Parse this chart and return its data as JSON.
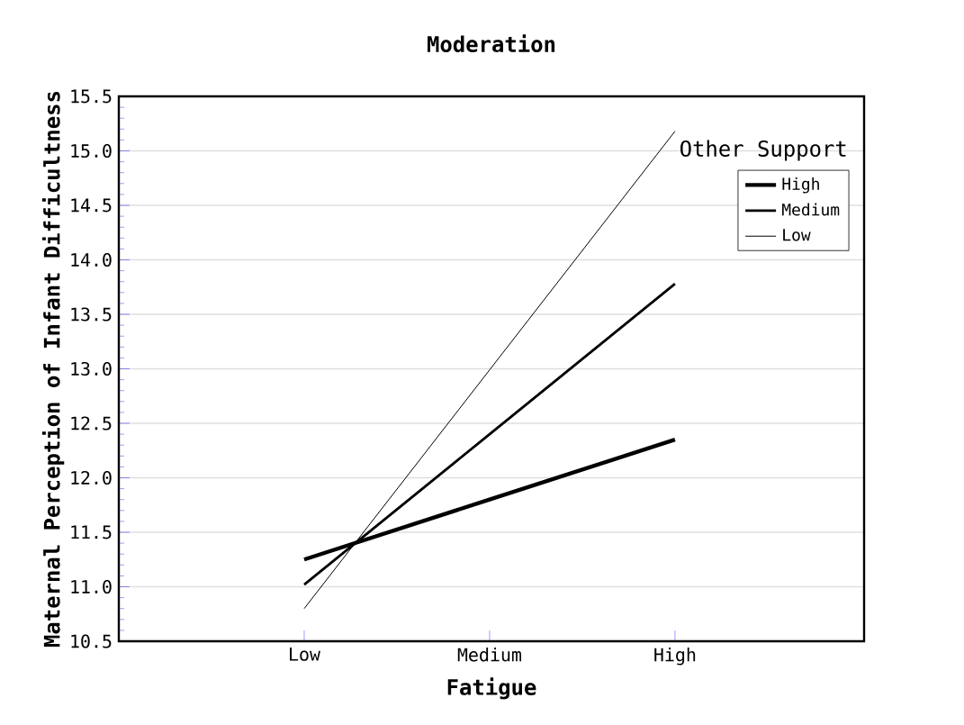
{
  "chart_data": {
    "type": "line",
    "title": "Moderation",
    "xlabel": "Fatigue",
    "ylabel": "Maternal Perception of Infant Difficultness",
    "legend_title": "Other Support",
    "categories": [
      "Low",
      "Medium",
      "High"
    ],
    "series": [
      {
        "name": "High",
        "color": "#000000",
        "values": [
          11.25,
          11.8,
          12.35
        ]
      },
      {
        "name": "Medium",
        "color": "#000000",
        "values": [
          11.02,
          12.4,
          13.78
        ]
      },
      {
        "name": "Low",
        "color": "#000000",
        "values": [
          10.8,
          12.99,
          15.18
        ]
      }
    ],
    "ylim": [
      10.5,
      15.5
    ],
    "yticks": [
      10.5,
      {
        "value": 11,
        "label": "11.0"
      },
      11.5,
      {
        "value": 12,
        "label": "12.0"
      },
      12.5,
      {
        "value": 13,
        "label": "13.0"
      },
      13.5,
      {
        "value": 14,
        "label": "14.0"
      },
      14.5,
      {
        "value": 15,
        "label": "15.0"
      },
      15.5
    ],
    "grid": "y",
    "legend": "top right",
    "marker": "none",
    "line_style": "solid"
  }
}
